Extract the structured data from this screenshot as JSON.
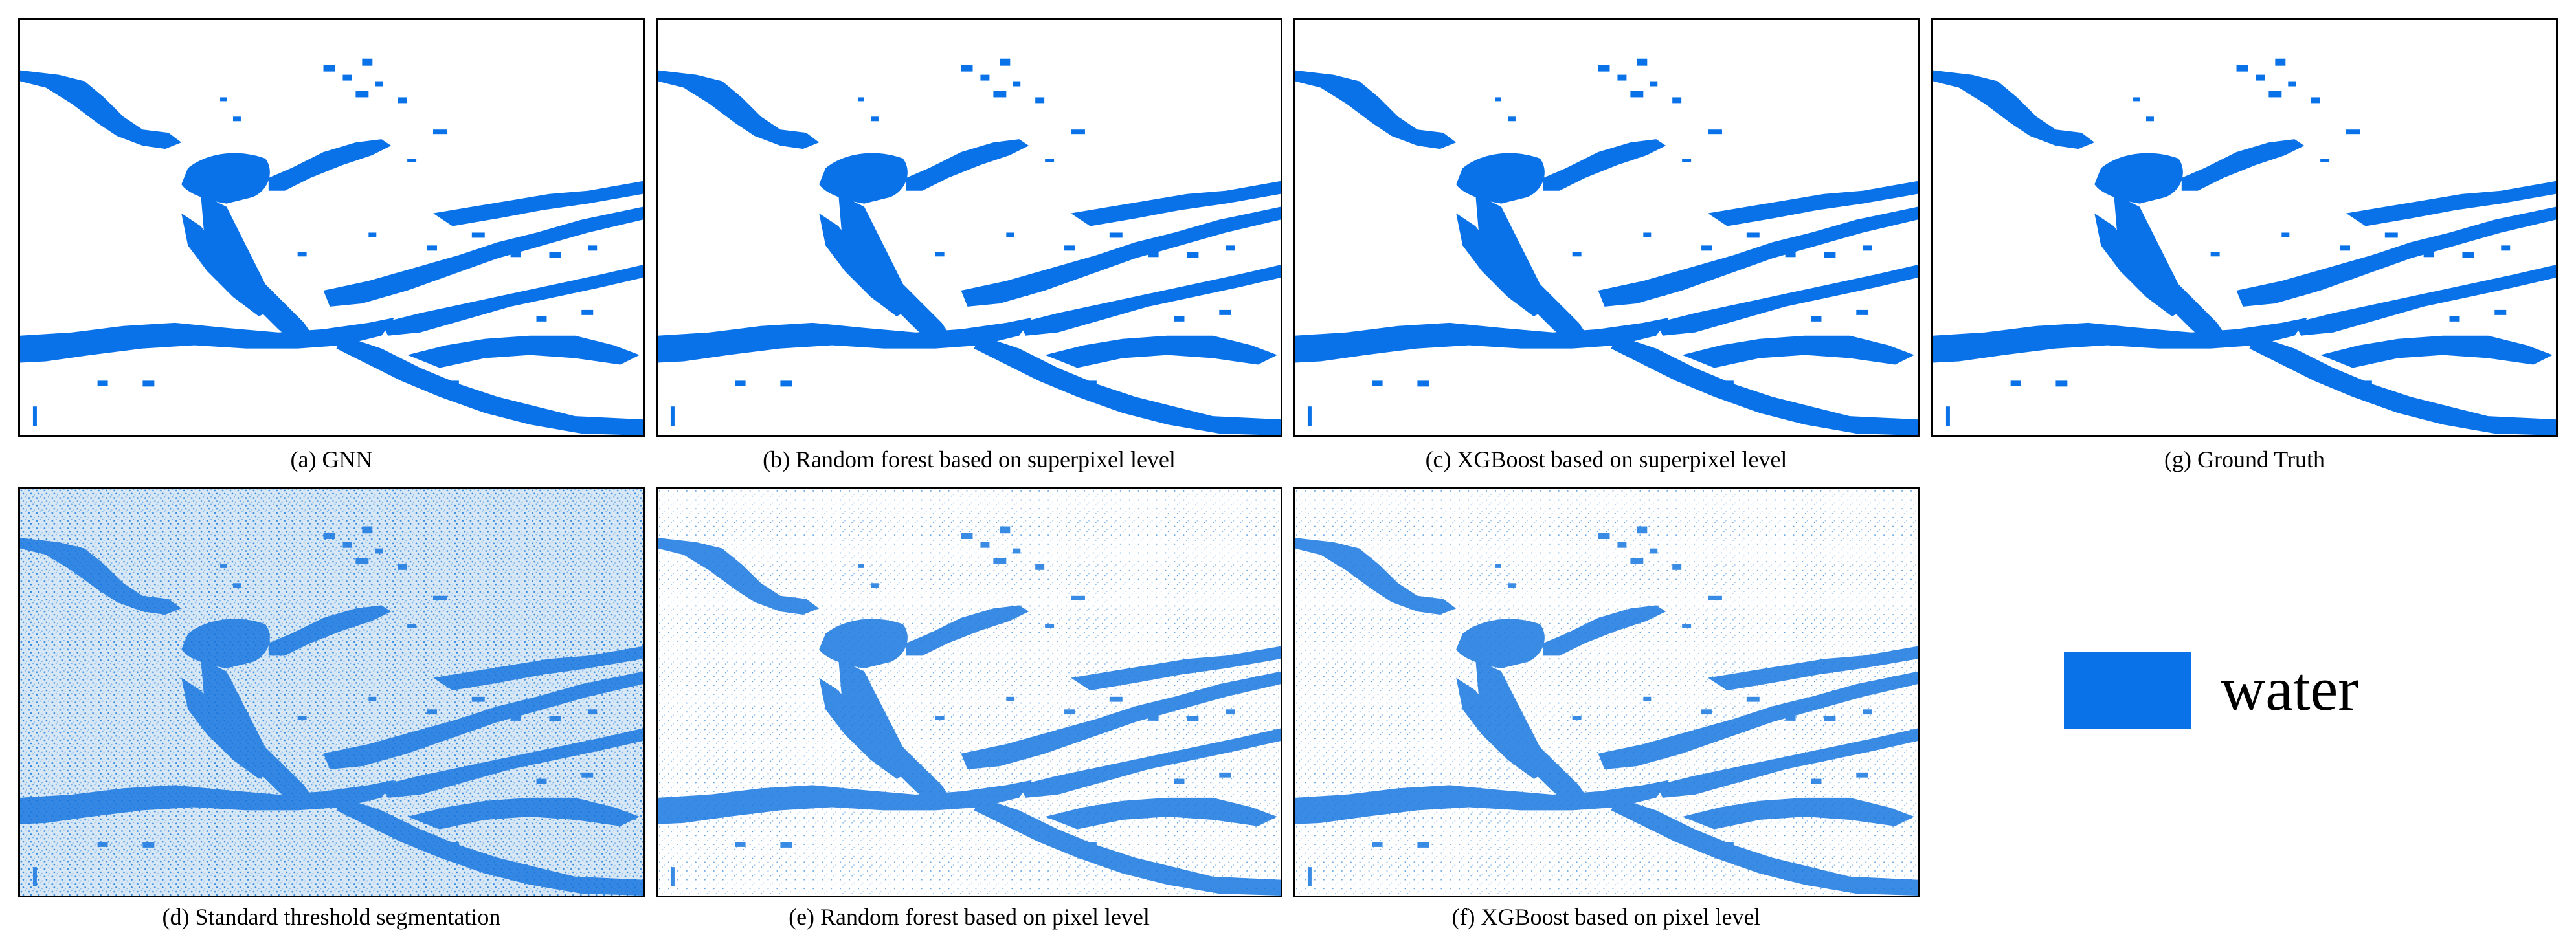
{
  "colors": {
    "water": "#0a72e8",
    "speckle": "#b7d3ec"
  },
  "panels": {
    "a": {
      "caption": "(a) GNN"
    },
    "b": {
      "caption": "(b) Random forest based on superpixel level"
    },
    "c": {
      "caption": "(c) XGBoost based on superpixel level"
    },
    "g": {
      "caption": "(g) Ground Truth"
    },
    "d": {
      "caption": "(d) Standard threshold segmentation"
    },
    "e": {
      "caption": "(e) Random forest based on pixel level"
    },
    "f": {
      "caption": "(f) XGBoost based on pixel level"
    }
  },
  "legend": {
    "label": "water"
  }
}
